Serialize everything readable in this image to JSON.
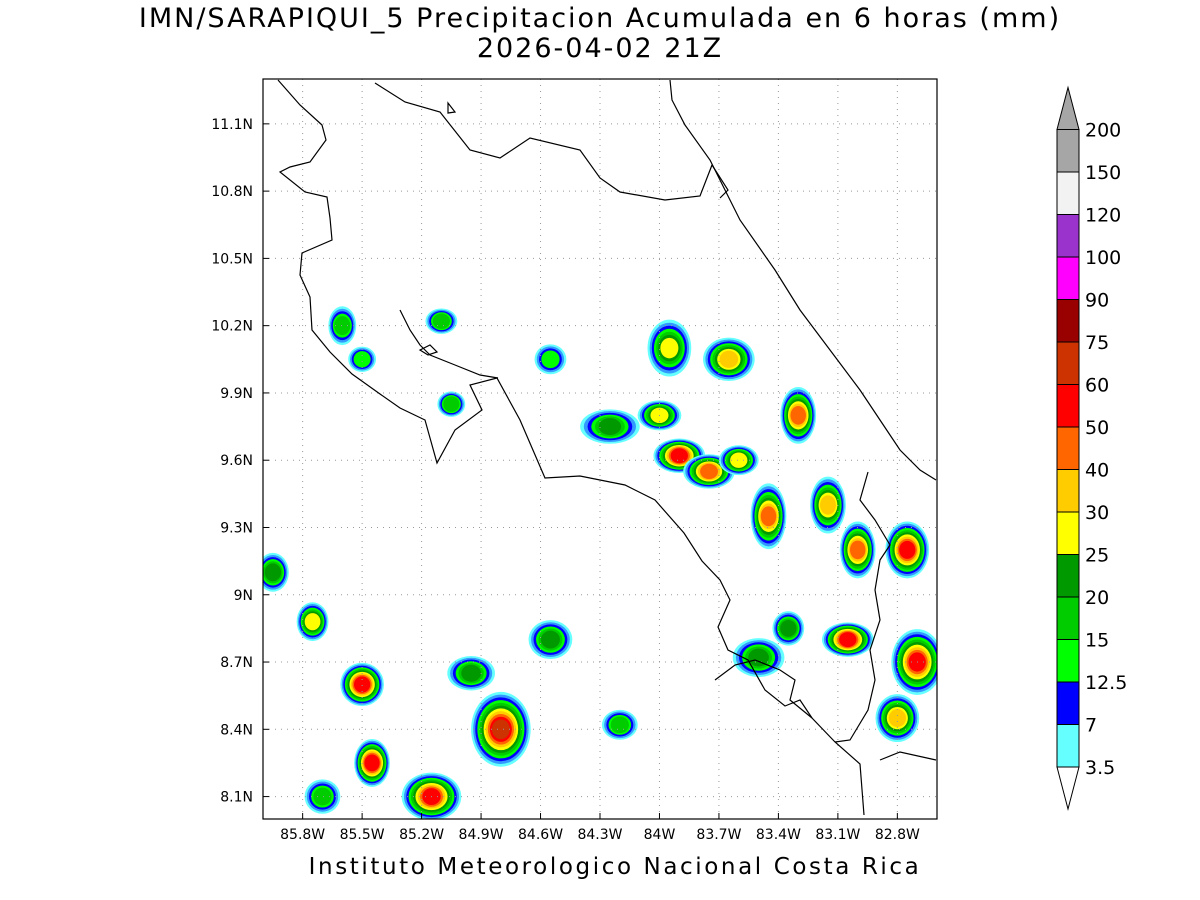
{
  "title": {
    "line1": "IMN/SARAPIQUI_5 Precipitacion Acumulada en 6 horas (mm)",
    "line2": "2026-04-02 21Z"
  },
  "footer": "Instituto Meteorologico Nacional Costa Rica",
  "map": {
    "lon_range": [
      -86.0,
      -82.6
    ],
    "lat_range": [
      8.0,
      11.3
    ],
    "x_ticks": [
      {
        "lon": -85.8,
        "label": "85.8W"
      },
      {
        "lon": -85.5,
        "label": "85.5W"
      },
      {
        "lon": -85.2,
        "label": "85.2W"
      },
      {
        "lon": -84.9,
        "label": "84.9W"
      },
      {
        "lon": -84.6,
        "label": "84.6W"
      },
      {
        "lon": -84.3,
        "label": "84.3W"
      },
      {
        "lon": -84.0,
        "label": "84W"
      },
      {
        "lon": -83.7,
        "label": "83.7W"
      },
      {
        "lon": -83.4,
        "label": "83.4W"
      },
      {
        "lon": -83.1,
        "label": "83.1W"
      },
      {
        "lon": -82.8,
        "label": "82.8W"
      }
    ],
    "y_ticks": [
      {
        "lat": 8.1,
        "label": "8.1N"
      },
      {
        "lat": 8.4,
        "label": "8.4N"
      },
      {
        "lat": 8.7,
        "label": "8.7N"
      },
      {
        "lat": 9.0,
        "label": "9N"
      },
      {
        "lat": 9.3,
        "label": "9.3N"
      },
      {
        "lat": 9.6,
        "label": "9.6N"
      },
      {
        "lat": 9.9,
        "label": "9.9N"
      },
      {
        "lat": 10.2,
        "label": "10.2N"
      },
      {
        "lat": 10.5,
        "label": "10.5N"
      },
      {
        "lat": 10.8,
        "label": "10.8N"
      },
      {
        "lat": 11.1,
        "label": "11.1N"
      }
    ],
    "grid": true
  },
  "colorbar": {
    "units": "mm",
    "levels": [
      {
        "label": "3.5",
        "color": "#66ffff"
      },
      {
        "label": "7",
        "color": "#3399ff"
      },
      {
        "label": "12.5",
        "color": "#0000ff"
      },
      {
        "label": "15",
        "color": "#00ff00"
      },
      {
        "label": "20",
        "color": "#00cc00"
      },
      {
        "label": "25",
        "color": "#009900"
      },
      {
        "label": "30",
        "color": "#ffff00"
      },
      {
        "label": "40",
        "color": "#ffcc00"
      },
      {
        "label": "50",
        "color": "#ff6600"
      },
      {
        "label": "60",
        "color": "#ff0000"
      },
      {
        "label": "75",
        "color": "#cc3300"
      },
      {
        "label": "90",
        "color": "#990000"
      },
      {
        "label": "100",
        "color": "#ff00ff"
      },
      {
        "label": "120",
        "color": "#9933cc"
      },
      {
        "label": "150",
        "color": "#f2f2f2"
      },
      {
        "label": "200",
        "color": "#a6a6a6"
      }
    ]
  },
  "precip_cells": [
    {
      "lon": -85.15,
      "lat": 8.1,
      "peak": 60,
      "rx": 0.12,
      "ry": 0.08
    },
    {
      "lon": -85.45,
      "lat": 8.25,
      "peak": 60,
      "rx": 0.06,
      "ry": 0.08
    },
    {
      "lon": -85.5,
      "lat": 8.6,
      "peak": 60,
      "rx": 0.08,
      "ry": 0.07
    },
    {
      "lon": -84.8,
      "lat": 8.4,
      "peak": 75,
      "rx": 0.12,
      "ry": 0.14
    },
    {
      "lon": -84.55,
      "lat": 8.8,
      "peak": 25,
      "rx": 0.08,
      "ry": 0.06
    },
    {
      "lon": -84.2,
      "lat": 8.42,
      "peak": 20,
      "rx": 0.06,
      "ry": 0.04
    },
    {
      "lon": -85.75,
      "lat": 8.88,
      "peak": 30,
      "rx": 0.05,
      "ry": 0.06
    },
    {
      "lon": -85.95,
      "lat": 9.1,
      "peak": 25,
      "rx": 0.05,
      "ry": 0.06
    },
    {
      "lon": -85.7,
      "lat": 8.1,
      "peak": 20,
      "rx": 0.06,
      "ry": 0.05
    },
    {
      "lon": -84.95,
      "lat": 8.65,
      "peak": 25,
      "rx": 0.09,
      "ry": 0.05
    },
    {
      "lon": -83.9,
      "lat": 9.62,
      "peak": 60,
      "rx": 0.1,
      "ry": 0.05
    },
    {
      "lon": -83.75,
      "lat": 9.55,
      "peak": 50,
      "rx": 0.1,
      "ry": 0.05
    },
    {
      "lon": -84.25,
      "lat": 9.75,
      "peak": 25,
      "rx": 0.12,
      "ry": 0.05
    },
    {
      "lon": -83.95,
      "lat": 10.1,
      "peak": 30,
      "rx": 0.08,
      "ry": 0.1
    },
    {
      "lon": -83.65,
      "lat": 10.05,
      "peak": 40,
      "rx": 0.1,
      "ry": 0.07
    },
    {
      "lon": -83.3,
      "lat": 9.8,
      "peak": 50,
      "rx": 0.06,
      "ry": 0.1
    },
    {
      "lon": -83.45,
      "lat": 9.35,
      "peak": 50,
      "rx": 0.06,
      "ry": 0.12
    },
    {
      "lon": -83.15,
      "lat": 9.4,
      "peak": 40,
      "rx": 0.06,
      "ry": 0.1
    },
    {
      "lon": -83.0,
      "lat": 9.2,
      "peak": 50,
      "rx": 0.06,
      "ry": 0.1
    },
    {
      "lon": -82.75,
      "lat": 9.2,
      "peak": 60,
      "rx": 0.08,
      "ry": 0.1
    },
    {
      "lon": -83.05,
      "lat": 8.8,
      "peak": 60,
      "rx": 0.1,
      "ry": 0.05
    },
    {
      "lon": -82.7,
      "lat": 8.7,
      "peak": 60,
      "rx": 0.1,
      "ry": 0.12
    },
    {
      "lon": -82.8,
      "lat": 8.45,
      "peak": 40,
      "rx": 0.08,
      "ry": 0.08
    },
    {
      "lon": -83.5,
      "lat": 8.72,
      "peak": 25,
      "rx": 0.1,
      "ry": 0.06
    },
    {
      "lon": -83.35,
      "lat": 8.85,
      "peak": 25,
      "rx": 0.05,
      "ry": 0.05
    },
    {
      "lon": -85.6,
      "lat": 10.2,
      "peak": 20,
      "rx": 0.04,
      "ry": 0.06
    },
    {
      "lon": -85.1,
      "lat": 10.22,
      "peak": 20,
      "rx": 0.05,
      "ry": 0.03
    },
    {
      "lon": -85.05,
      "lat": 9.85,
      "peak": 20,
      "rx": 0.04,
      "ry": 0.03
    },
    {
      "lon": -84.55,
      "lat": 10.05,
      "peak": 15,
      "rx": 0.05,
      "ry": 0.04
    },
    {
      "lon": -85.5,
      "lat": 10.05,
      "peak": 15,
      "rx": 0.04,
      "ry": 0.03
    },
    {
      "lon": -84.0,
      "lat": 9.8,
      "peak": 30,
      "rx": 0.08,
      "ry": 0.04
    },
    {
      "lon": -83.6,
      "lat": 9.6,
      "peak": 30,
      "rx": 0.07,
      "ry": 0.04
    }
  ]
}
